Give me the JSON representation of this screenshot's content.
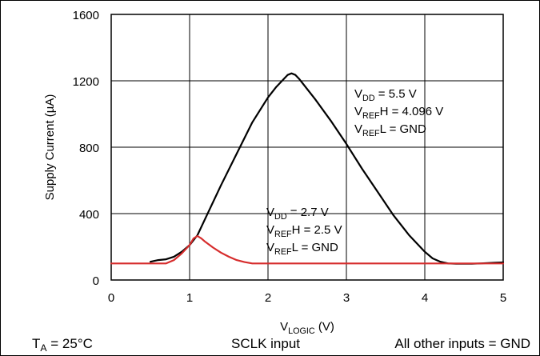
{
  "chart_data": {
    "type": "line",
    "title": "",
    "xlabel": {
      "main": "V",
      "sub": "LOGIC",
      "unit": " (V)"
    },
    "ylabel": "Supply Current (µA)",
    "xlim": [
      0,
      5
    ],
    "ylim": [
      0,
      1600
    ],
    "xticks": [
      "0",
      "1",
      "2",
      "3",
      "4",
      "5"
    ],
    "yticks": [
      "0",
      "400",
      "800",
      "1200",
      "1600"
    ],
    "grid": true,
    "series": [
      {
        "color": "#000000",
        "x": [
          0.5,
          0.6,
          0.7,
          0.8,
          0.9,
          1.0,
          1.1,
          1.2,
          1.4,
          1.6,
          1.8,
          2.0,
          2.1,
          2.2,
          2.25,
          2.3,
          2.35,
          2.4,
          2.6,
          2.8,
          3.0,
          3.2,
          3.4,
          3.6,
          3.8,
          4.0,
          4.1,
          4.2,
          4.3,
          4.4,
          4.5,
          4.6,
          4.7,
          4.8,
          4.9,
          5.0
        ],
        "y": [
          110,
          120,
          125,
          140,
          170,
          210,
          270,
          370,
          570,
          760,
          950,
          1100,
          1160,
          1210,
          1235,
          1245,
          1235,
          1210,
          1090,
          960,
          820,
          670,
          530,
          390,
          270,
          170,
          130,
          110,
          100,
          98,
          98,
          98,
          100,
          102,
          104,
          106
        ]
      },
      {
        "color": "#d62c2c",
        "x": [
          0,
          0.7,
          0.8,
          0.9,
          1.0,
          1.05,
          1.1,
          1.15,
          1.2,
          1.3,
          1.4,
          1.5,
          1.6,
          1.7,
          1.8,
          2.0,
          2.5,
          3.0,
          3.5,
          4.0,
          4.5,
          5.0
        ],
        "y": [
          100,
          100,
          120,
          160,
          210,
          250,
          265,
          250,
          230,
          195,
          165,
          140,
          120,
          108,
          100,
          100,
          100,
          100,
          100,
          100,
          100,
          100
        ]
      }
    ],
    "annotations": [
      {
        "lines": [
          [
            {
              "t": "V"
            },
            {
              "t": "DD",
              "sub": true
            },
            {
              "t": " = 5.5 V"
            }
          ],
          [
            {
              "t": "V"
            },
            {
              "t": "REF",
              "sub": true
            },
            {
              "t": "H = 4.096 V"
            }
          ],
          [
            {
              "t": "V"
            },
            {
              "t": "REF",
              "sub": true
            },
            {
              "t": "L = GND"
            }
          ]
        ]
      },
      {
        "lines": [
          [
            {
              "t": "V"
            },
            {
              "t": "DD",
              "sub": true
            },
            {
              "t": " = 2.7 V"
            }
          ],
          [
            {
              "t": "V"
            },
            {
              "t": "REF",
              "sub": true
            },
            {
              "t": "H = 2.5 V"
            }
          ],
          [
            {
              "t": "V"
            },
            {
              "t": "REF",
              "sub": true
            },
            {
              "t": "L = GND"
            }
          ]
        ]
      }
    ],
    "footer": [
      [
        {
          "t": "T"
        },
        {
          "t": "A",
          "sub": true
        },
        {
          "t": " = 25°C"
        }
      ],
      [
        {
          "t": "SCLK input"
        }
      ],
      [
        {
          "t": "All other inputs = GND"
        }
      ]
    ]
  }
}
